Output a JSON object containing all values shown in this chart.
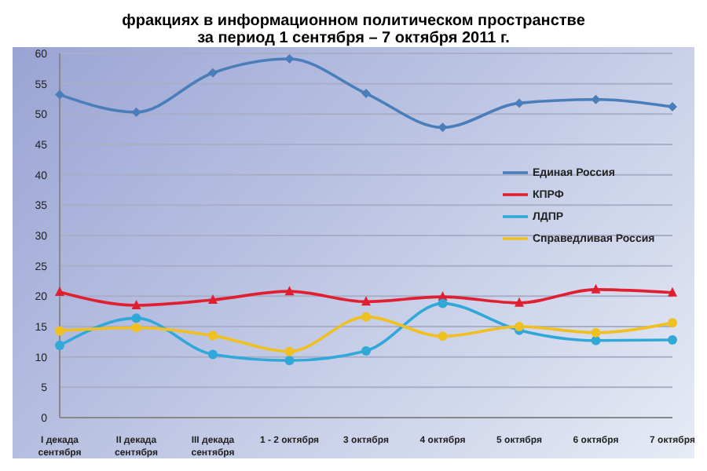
{
  "chart_data": {
    "type": "line",
    "title": "фракциях в информационном политическом пространстве\nза период 1 сентября – 7 октября 2011 г.",
    "categories": [
      "I декада сентября",
      "II декада сентября",
      "III декада сентября",
      "1 - 2 октября",
      "3 октября",
      "4 октября",
      "5 октября",
      "6 октября",
      "7 октября"
    ],
    "series": [
      {
        "name": "Единая Россия",
        "color": "#4a7ebb",
        "marker": "diamond",
        "values": [
          53.2,
          50.3,
          56.8,
          59.1,
          53.4,
          47.8,
          51.8,
          52.4,
          51.2
        ]
      },
      {
        "name": "КПРФ",
        "color": "#e02030",
        "marker": "triangle",
        "values": [
          20.7,
          18.5,
          19.4,
          20.8,
          19.1,
          19.9,
          18.9,
          21.1,
          20.6
        ]
      },
      {
        "name": "ЛДПР",
        "color": "#30a8d8",
        "marker": "circle",
        "values": [
          11.9,
          16.4,
          10.4,
          9.4,
          11.0,
          18.8,
          14.4,
          12.7,
          12.8
        ]
      },
      {
        "name": "Справедливая Россия",
        "color": "#f0c020",
        "marker": "circle",
        "values": [
          14.3,
          14.8,
          13.5,
          10.9,
          16.6,
          13.4,
          15.0,
          14.0,
          15.6
        ]
      }
    ],
    "ylim": [
      0,
      60
    ],
    "yticks": [
      0,
      5,
      10,
      15,
      20,
      25,
      30,
      35,
      40,
      45,
      50,
      55,
      60
    ],
    "grid": "y",
    "legend": "right",
    "line_style": "solid"
  }
}
